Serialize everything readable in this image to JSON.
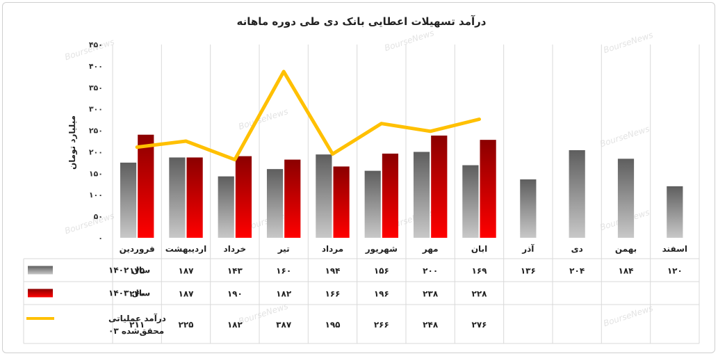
{
  "chart_data": {
    "type": "bar",
    "title": "درآمد تسهیلات اعطایی بانک دی طی دوره ماهانه",
    "ylabel": "میلیارد تومان",
    "ylim": [
      0,
      450
    ],
    "yticks": [
      "۰",
      "۵۰",
      "۱۰۰",
      "۱۵۰",
      "۲۰۰",
      "۲۵۰",
      "۳۰۰",
      "۳۵۰",
      "۴۰۰",
      "۴۵۰"
    ],
    "ytick_values": [
      0,
      50,
      100,
      150,
      200,
      250,
      300,
      350,
      400,
      450
    ],
    "grid": "vertical",
    "watermark": "BourseNews",
    "categories": [
      "فروردین",
      "اردیبهشت",
      "خرداد",
      "تیر",
      "مرداد",
      "شهریور",
      "مهر",
      "ابان",
      "آذر",
      "دی",
      "بهمن",
      "اسفند"
    ],
    "series": [
      {
        "name": "سال ۱۴۰۲",
        "kind": "bar",
        "color": "#7f7f7f",
        "values": [
          175,
          187,
          143,
          160,
          194,
          156,
          200,
          169,
          136,
          204,
          184,
          120
        ],
        "labels": [
          "۱۷۵",
          "۱۸۷",
          "۱۴۳",
          "۱۶۰",
          "۱۹۴",
          "۱۵۶",
          "۲۰۰",
          "۱۶۹",
          "۱۳۶",
          "۲۰۴",
          "۱۸۴",
          "۱۲۰"
        ]
      },
      {
        "name": "سال ۱۴۰۳",
        "kind": "bar",
        "color": "#c00000",
        "values": [
          240,
          187,
          190,
          182,
          166,
          196,
          238,
          228,
          null,
          null,
          null,
          null
        ],
        "labels": [
          "۲۴۰",
          "۱۸۷",
          "۱۹۰",
          "۱۸۲",
          "۱۶۶",
          "۱۹۶",
          "۲۳۸",
          "۲۲۸",
          "",
          "",
          "",
          ""
        ]
      },
      {
        "name": "درآمد عملیاتی محقق‌شده ۰۳",
        "kind": "line",
        "color": "#ffc000",
        "values": [
          211,
          225,
          182,
          387,
          195,
          266,
          248,
          276,
          null,
          null,
          null,
          null
        ],
        "labels": [
          "۲۱۱",
          "۲۲۵",
          "۱۸۲",
          "۳۸۷",
          "۱۹۵",
          "۲۶۶",
          "۲۴۸",
          "۲۷۶",
          "",
          "",
          "",
          ""
        ]
      }
    ]
  }
}
